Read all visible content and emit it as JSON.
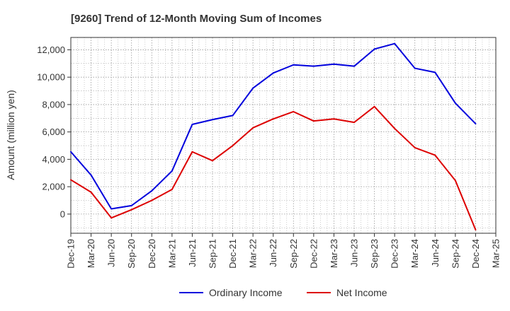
{
  "chart_data": {
    "type": "line",
    "title": "[9260]  Trend of 12-Month Moving Sum of Incomes",
    "xlabel": "",
    "ylabel": "Amount (million yen)",
    "ylim": [
      -1400,
      12900
    ],
    "yticks": [
      0,
      2000,
      4000,
      6000,
      8000,
      10000,
      12000
    ],
    "ytick_labels": [
      "0",
      "2,000",
      "4,000",
      "6,000",
      "8,000",
      "10,000",
      "12,000"
    ],
    "categories": [
      "Dec-19",
      "Mar-20",
      "Jun-20",
      "Sep-20",
      "Dec-20",
      "Mar-21",
      "Jun-21",
      "Sep-21",
      "Dec-21",
      "Mar-22",
      "Jun-22",
      "Sep-22",
      "Dec-22",
      "Mar-23",
      "Jun-23",
      "Sep-23",
      "Dec-23",
      "Mar-24",
      "Jun-24",
      "Sep-24",
      "Dec-24",
      "Mar-25"
    ],
    "grid": true,
    "legend_position": "bottom",
    "series": [
      {
        "name": "Ordinary Income",
        "color": "#0000dd",
        "values": [
          4550,
          2850,
          380,
          620,
          1700,
          3150,
          6550,
          6900,
          7200,
          9200,
          10300,
          10900,
          10800,
          10950,
          10800,
          12050,
          12450,
          10650,
          10350,
          8100,
          6600,
          null
        ]
      },
      {
        "name": "Net Income",
        "color": "#dd0000",
        "values": [
          2500,
          1600,
          -280,
          320,
          1000,
          1800,
          4550,
          3900,
          5000,
          6300,
          6950,
          7480,
          6800,
          6950,
          6700,
          7850,
          6250,
          4850,
          4300,
          2450,
          -1150,
          null
        ]
      }
    ]
  }
}
